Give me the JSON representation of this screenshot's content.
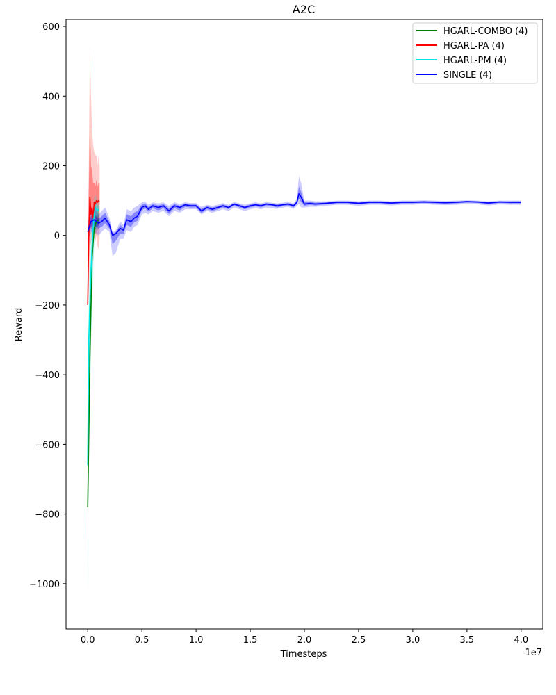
{
  "chart_data": {
    "type": "line",
    "title": "A2C",
    "xlabel": "Timesteps",
    "ylabel": "Reward",
    "x_multiplier_label": "1e7",
    "xlim": [
      -0.2,
      4.2
    ],
    "ylim": [
      -1130,
      620
    ],
    "x_ticks": [
      0.0,
      0.5,
      1.0,
      1.5,
      2.0,
      2.5,
      3.0,
      3.5,
      4.0
    ],
    "x_tick_labels": [
      "0.0",
      "0.5",
      "1.0",
      "1.5",
      "2.0",
      "2.5",
      "3.0",
      "3.5",
      "4.0"
    ],
    "y_ticks": [
      600,
      400,
      200,
      0,
      -200,
      -400,
      -600,
      -800,
      -1000
    ],
    "y_tick_labels": [
      "600",
      "400",
      "200",
      "0",
      "−200",
      "−400",
      "−600",
      "−800",
      "−1000"
    ],
    "grid": false,
    "legend_position": "top-right",
    "series": [
      {
        "name": "HGARL-COMBO (4)",
        "color": "#008000",
        "x": [
          0.0,
          0.02,
          0.04,
          0.06,
          0.08,
          0.1
        ],
        "values": [
          -780,
          -350,
          -60,
          20,
          40,
          45
        ],
        "outer_band": [
          [
            -800,
            -900
          ],
          [
            -150,
            -500
          ],
          [
            10,
            -150
          ],
          [
            50,
            -10
          ],
          [
            65,
            10
          ],
          [
            70,
            20
          ]
        ],
        "inner_band": [
          [
            -760,
            -820
          ],
          [
            -300,
            -400
          ],
          [
            -20,
            -100
          ],
          [
            35,
            5
          ],
          [
            55,
            25
          ],
          [
            60,
            30
          ]
        ]
      },
      {
        "name": "HGARL-PA (4)",
        "color": "#ff0000",
        "x": [
          0.0,
          0.01,
          0.02,
          0.03,
          0.04,
          0.05,
          0.06,
          0.07,
          0.08,
          0.09,
          0.1,
          0.11
        ],
        "values": [
          -200,
          0,
          110,
          60,
          80,
          50,
          95,
          90,
          100,
          95,
          100,
          95
        ],
        "outer_band": [
          [
            -20,
            -260
          ],
          [
            200,
            -150
          ],
          [
            545,
            -40
          ],
          [
            400,
            -20
          ],
          [
            300,
            -10
          ],
          [
            260,
            -20
          ],
          [
            240,
            10
          ],
          [
            230,
            -20
          ],
          [
            230,
            0
          ],
          [
            200,
            -30
          ],
          [
            230,
            -40
          ],
          [
            200,
            -10
          ]
        ],
        "inner_band": [
          [
            -100,
            -230
          ],
          [
            120,
            -80
          ],
          [
            330,
            30
          ],
          [
            200,
            20
          ],
          [
            190,
            20
          ],
          [
            150,
            20
          ],
          [
            150,
            50
          ],
          [
            140,
            50
          ],
          [
            160,
            40
          ],
          [
            140,
            40
          ],
          [
            150,
            40
          ],
          [
            150,
            30
          ]
        ]
      },
      {
        "name": "HGARL-PM (4)",
        "color": "#00e5e5",
        "x": [
          0.0,
          0.01,
          0.02,
          0.03,
          0.04,
          0.05,
          0.06,
          0.07,
          0.08,
          0.09,
          0.1
        ],
        "values": [
          -660,
          -300,
          -200,
          -100,
          -40,
          20,
          60,
          80,
          75,
          70,
          75
        ],
        "outer_band": [
          [
            -600,
            -1050
          ],
          [
            -150,
            -600
          ],
          [
            -50,
            -500
          ],
          [
            20,
            -300
          ],
          [
            60,
            -200
          ],
          [
            90,
            -120
          ],
          [
            110,
            -30
          ],
          [
            120,
            20
          ],
          [
            110,
            20
          ],
          [
            100,
            30
          ],
          [
            100,
            40
          ]
        ],
        "inner_band": [
          [
            -620,
            -800
          ],
          [
            -230,
            -400
          ],
          [
            -140,
            -300
          ],
          [
            -60,
            -180
          ],
          [
            0,
            -100
          ],
          [
            50,
            -20
          ],
          [
            85,
            30
          ],
          [
            100,
            55
          ],
          [
            95,
            55
          ],
          [
            85,
            50
          ],
          [
            90,
            55
          ]
        ]
      },
      {
        "name": "SINGLE (4)",
        "color": "#0000ff",
        "x": [
          0.0,
          0.03,
          0.06,
          0.1,
          0.13,
          0.16,
          0.2,
          0.23,
          0.26,
          0.3,
          0.33,
          0.36,
          0.4,
          0.43,
          0.46,
          0.5,
          0.53,
          0.56,
          0.6,
          0.65,
          0.7,
          0.75,
          0.8,
          0.85,
          0.9,
          0.95,
          1.0,
          1.05,
          1.1,
          1.15,
          1.2,
          1.25,
          1.3,
          1.35,
          1.4,
          1.45,
          1.5,
          1.55,
          1.6,
          1.65,
          1.7,
          1.75,
          1.8,
          1.85,
          1.9,
          1.93,
          1.95,
          1.97,
          2.0,
          2.05,
          2.1,
          2.2,
          2.3,
          2.4,
          2.5,
          2.6,
          2.7,
          2.8,
          2.9,
          3.0,
          3.1,
          3.2,
          3.3,
          3.4,
          3.5,
          3.6,
          3.7,
          3.8,
          3.9,
          4.0
        ],
        "values": [
          10,
          40,
          45,
          35,
          40,
          50,
          30,
          0,
          5,
          20,
          15,
          45,
          40,
          50,
          55,
          80,
          85,
          75,
          85,
          80,
          85,
          70,
          85,
          80,
          88,
          85,
          85,
          70,
          80,
          75,
          80,
          85,
          80,
          90,
          85,
          80,
          85,
          88,
          85,
          90,
          88,
          85,
          88,
          90,
          85,
          95,
          120,
          110,
          90,
          92,
          90,
          92,
          95,
          95,
          92,
          95,
          95,
          93,
          95,
          95,
          96,
          95,
          94,
          95,
          97,
          96,
          93,
          96,
          95,
          95
        ],
        "outer_band": [
          [
            40,
            -20
          ],
          [
            70,
            10
          ],
          [
            80,
            10
          ],
          [
            60,
            0
          ],
          [
            70,
            10
          ],
          [
            80,
            20
          ],
          [
            50,
            10
          ],
          [
            10,
            -60
          ],
          [
            15,
            -50
          ],
          [
            40,
            -10
          ],
          [
            30,
            -10
          ],
          [
            75,
            15
          ],
          [
            70,
            10
          ],
          [
            80,
            25
          ],
          [
            85,
            30
          ],
          [
            95,
            60
          ],
          [
            98,
            65
          ],
          [
            88,
            60
          ],
          [
            95,
            70
          ],
          [
            92,
            65
          ],
          [
            95,
            70
          ],
          [
            85,
            55
          ],
          [
            95,
            70
          ],
          [
            90,
            65
          ],
          [
            95,
            75
          ],
          [
            93,
            75
          ],
          [
            93,
            75
          ],
          [
            82,
            60
          ],
          [
            88,
            70
          ],
          [
            85,
            65
          ],
          [
            88,
            70
          ],
          [
            93,
            75
          ],
          [
            88,
            70
          ],
          [
            96,
            80
          ],
          [
            92,
            75
          ],
          [
            88,
            70
          ],
          [
            92,
            75
          ],
          [
            95,
            78
          ],
          [
            92,
            75
          ],
          [
            96,
            80
          ],
          [
            94,
            78
          ],
          [
            92,
            76
          ],
          [
            94,
            80
          ],
          [
            96,
            82
          ],
          [
            92,
            76
          ],
          [
            105,
            85
          ],
          [
            170,
            90
          ],
          [
            150,
            80
          ],
          [
            100,
            80
          ],
          [
            100,
            82
          ],
          [
            98,
            82
          ],
          [
            98,
            85
          ],
          [
            100,
            88
          ],
          [
            100,
            88
          ],
          [
            98,
            85
          ],
          [
            100,
            88
          ],
          [
            100,
            88
          ],
          [
            98,
            86
          ],
          [
            100,
            88
          ],
          [
            100,
            88
          ],
          [
            101,
            90
          ],
          [
            100,
            88
          ],
          [
            99,
            87
          ],
          [
            100,
            88
          ],
          [
            101,
            90
          ],
          [
            100,
            89
          ],
          [
            98,
            86
          ],
          [
            100,
            89
          ],
          [
            100,
            88
          ],
          [
            100,
            88
          ]
        ],
        "inner_band": [
          [
            25,
            -5
          ],
          [
            55,
            25
          ],
          [
            60,
            30
          ],
          [
            48,
            20
          ],
          [
            55,
            25
          ],
          [
            65,
            35
          ],
          [
            40,
            20
          ],
          [
            5,
            -25
          ],
          [
            10,
            -15
          ],
          [
            30,
            5
          ],
          [
            22,
            5
          ],
          [
            60,
            30
          ],
          [
            55,
            25
          ],
          [
            65,
            38
          ],
          [
            70,
            42
          ],
          [
            88,
            72
          ],
          [
            92,
            78
          ],
          [
            82,
            68
          ],
          [
            90,
            78
          ],
          [
            86,
            72
          ],
          [
            90,
            78
          ],
          [
            78,
            62
          ],
          [
            90,
            78
          ],
          [
            85,
            72
          ],
          [
            92,
            82
          ],
          [
            89,
            80
          ],
          [
            89,
            80
          ],
          [
            76,
            64
          ],
          [
            84,
            75
          ],
          [
            80,
            70
          ],
          [
            84,
            75
          ],
          [
            89,
            80
          ],
          [
            84,
            75
          ],
          [
            93,
            86
          ],
          [
            89,
            80
          ],
          [
            84,
            75
          ],
          [
            89,
            80
          ],
          [
            92,
            84
          ],
          [
            89,
            80
          ],
          [
            93,
            86
          ],
          [
            91,
            84
          ],
          [
            89,
            80
          ],
          [
            91,
            84
          ],
          [
            93,
            86
          ],
          [
            89,
            80
          ],
          [
            100,
            90
          ],
          [
            140,
            105
          ],
          [
            125,
            95
          ],
          [
            95,
            85
          ],
          [
            96,
            88
          ],
          [
            94,
            86
          ],
          [
            95,
            89
          ],
          [
            98,
            92
          ],
          [
            98,
            92
          ],
          [
            95,
            89
          ],
          [
            98,
            92
          ],
          [
            98,
            92
          ],
          [
            96,
            90
          ],
          [
            98,
            92
          ],
          [
            98,
            92
          ],
          [
            99,
            93
          ],
          [
            98,
            92
          ],
          [
            97,
            91
          ],
          [
            98,
            92
          ],
          [
            99,
            94
          ],
          [
            98,
            93
          ],
          [
            96,
            90
          ],
          [
            98,
            93
          ],
          [
            98,
            92
          ],
          [
            98,
            92
          ]
        ]
      }
    ]
  }
}
